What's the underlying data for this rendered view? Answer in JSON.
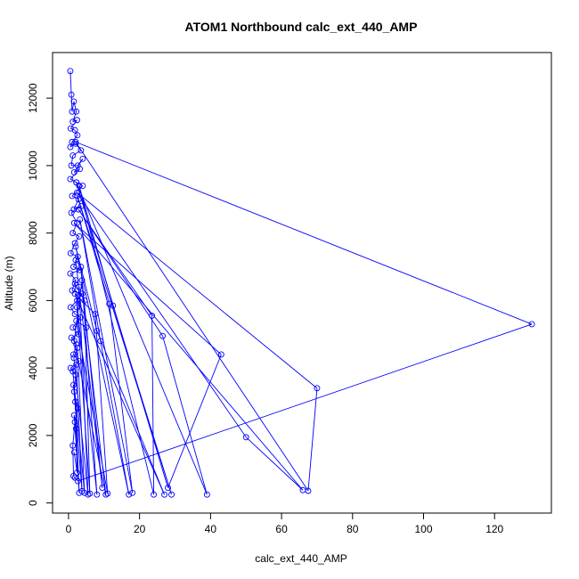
{
  "chart_data": {
    "type": "line",
    "title": "ATOM1 Northbound calc_ext_440_AMP",
    "xlabel": "calc_ext_440_AMP",
    "ylabel": "Altitude (m)",
    "xlim": [
      -4.5,
      136
    ],
    "ylim": [
      -300,
      13350
    ],
    "x_ticks": [
      0,
      20,
      40,
      60,
      80,
      100,
      120
    ],
    "y_ticks": [
      0,
      2000,
      4000,
      6000,
      8000,
      10000,
      12000
    ],
    "grid": false,
    "line_color": "#0000ff",
    "marker": "open-circle",
    "series": [
      {
        "points": [
          [
            0.5,
            12800
          ],
          [
            0.8,
            12100
          ],
          [
            1.0,
            11600
          ],
          [
            1.5,
            11900
          ],
          [
            2.2,
            11600
          ],
          [
            1.2,
            11300
          ],
          [
            2.4,
            11350
          ],
          [
            0.6,
            11100
          ],
          [
            1.8,
            11050
          ],
          [
            2.5,
            10900
          ],
          [
            1.0,
            10700
          ],
          [
            0.5,
            10550
          ],
          [
            2.0,
            10650
          ],
          [
            3.5,
            10450
          ],
          [
            1.2,
            10300
          ],
          [
            0.8,
            10000
          ],
          [
            2.6,
            10000
          ],
          [
            4.0,
            10200
          ],
          [
            1.6,
            9800
          ],
          [
            3.2,
            9900
          ],
          [
            0.5,
            9600
          ],
          [
            2.2,
            9500
          ],
          [
            4.0,
            9400
          ],
          [
            1.0,
            9100
          ],
          [
            2.8,
            9000
          ],
          [
            1.5,
            8700
          ],
          [
            3.6,
            8800
          ],
          [
            0.8,
            8600
          ],
          [
            2.4,
            8300
          ],
          [
            1.2,
            8000
          ],
          [
            3.0,
            7900
          ],
          [
            1.8,
            7700
          ],
          [
            0.6,
            7400
          ],
          [
            2.6,
            7300
          ],
          [
            1.4,
            7000
          ],
          [
            3.2,
            6900
          ],
          [
            0.5,
            6800
          ],
          [
            2.0,
            6600
          ],
          [
            1.0,
            6300
          ],
          [
            3.8,
            6200
          ],
          [
            2.4,
            6000
          ],
          [
            0.6,
            5800
          ],
          [
            1.8,
            5600
          ],
          [
            3.4,
            5500
          ],
          [
            1.2,
            5200
          ],
          [
            2.8,
            5000
          ],
          [
            0.8,
            4900
          ],
          [
            2.2,
            4700
          ],
          [
            1.4,
            4400
          ],
          [
            3.0,
            4200
          ],
          [
            0.6,
            4000
          ],
          [
            2.0,
            3800
          ],
          [
            1.6,
            3300
          ],
          [
            2.6,
            2800
          ],
          [
            1.8,
            2400
          ],
          [
            1.2,
            1700
          ],
          [
            1.4,
            800
          ],
          [
            1.8,
            750
          ],
          [
            2.6,
            650
          ],
          [
            130.5,
            5300
          ],
          [
            2.0,
            10700
          ],
          [
            67.5,
            360
          ],
          [
            70.0,
            3400
          ],
          [
            2.4,
            9200
          ],
          [
            50.0,
            1950
          ],
          [
            66.0,
            380
          ],
          [
            1.6,
            8300
          ],
          [
            43.0,
            4400
          ],
          [
            28.0,
            450
          ],
          [
            2.2,
            9500
          ],
          [
            39.0,
            250
          ],
          [
            26.5,
            4950
          ],
          [
            2.8,
            8700
          ],
          [
            23.5,
            5550
          ],
          [
            24.0,
            250
          ],
          [
            3.0,
            9400
          ],
          [
            12.5,
            5850
          ],
          [
            29.0,
            250
          ],
          [
            2.5,
            9100
          ],
          [
            11.5,
            5900
          ],
          [
            18.0,
            300
          ],
          [
            3.2,
            8400
          ],
          [
            9.0,
            4800
          ],
          [
            17.0,
            250
          ],
          [
            2.0,
            7600
          ],
          [
            8.0,
            5100
          ],
          [
            27.0,
            250
          ],
          [
            1.8,
            6200
          ],
          [
            7.5,
            5600
          ],
          [
            11.0,
            280
          ],
          [
            2.2,
            5400
          ],
          [
            5.0,
            5200
          ],
          [
            10.5,
            250
          ],
          [
            1.6,
            4800
          ],
          [
            3.8,
            6600
          ],
          [
            9.5,
            450
          ],
          [
            2.0,
            7200
          ],
          [
            3.5,
            7000
          ],
          [
            8.0,
            250
          ],
          [
            1.8,
            6500
          ],
          [
            4.5,
            6000
          ],
          [
            6.0,
            280
          ],
          [
            2.4,
            5800
          ],
          [
            3.0,
            6400
          ],
          [
            5.5,
            250
          ],
          [
            1.5,
            4300
          ],
          [
            2.5,
            4600
          ],
          [
            4.5,
            300
          ],
          [
            1.2,
            3900
          ],
          [
            2.2,
            4100
          ],
          [
            3.8,
            350
          ],
          [
            1.4,
            3500
          ],
          [
            1.9,
            3000
          ],
          [
            3.0,
            300
          ],
          [
            1.6,
            2600
          ],
          [
            2.1,
            2200
          ],
          [
            2.4,
            900
          ],
          [
            1.6,
            1500
          ]
        ]
      }
    ]
  }
}
